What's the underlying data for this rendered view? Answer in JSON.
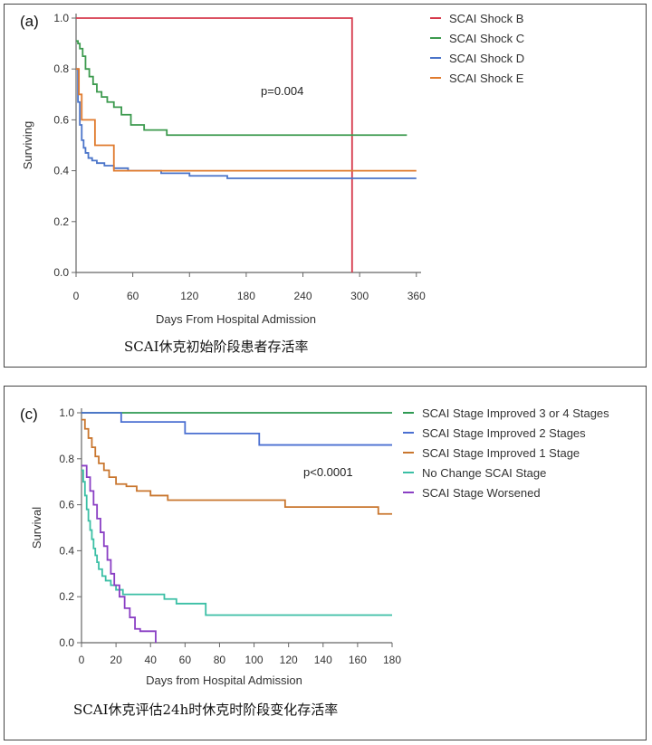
{
  "chart_data": [
    {
      "type": "line",
      "panel_label": "(a)",
      "xlabel": "Days From Hospital Admission",
      "ylabel": "Surviving",
      "xlim": [
        0,
        365
      ],
      "ylim": [
        0,
        1.0
      ],
      "xticks": [
        0,
        60,
        120,
        180,
        240,
        300,
        360
      ],
      "yticks": [
        0.0,
        0.2,
        0.4,
        0.6,
        0.8,
        1.0
      ],
      "ytick_labels": [
        "0.0",
        "0.2",
        "0.4",
        "0.6",
        "0.8",
        "1.0"
      ],
      "annotation": "p=0.004",
      "caption": "SCAI休克初始阶段患者存活率",
      "legend_placement": "right",
      "series": [
        {
          "name": "SCAI Shock B",
          "color": "#d6394b",
          "x": [
            0,
            292,
            292
          ],
          "y": [
            1.0,
            1.0,
            0.0
          ]
        },
        {
          "name": "SCAI Shock C",
          "color": "#3c9a4e",
          "x": [
            0,
            2,
            4,
            7,
            10,
            14,
            18,
            22,
            27,
            33,
            40,
            48,
            58,
            72,
            96,
            140,
            200,
            290,
            350
          ],
          "y": [
            0.91,
            0.9,
            0.88,
            0.85,
            0.8,
            0.77,
            0.74,
            0.71,
            0.69,
            0.67,
            0.65,
            0.62,
            0.58,
            0.56,
            0.54,
            0.54,
            0.54,
            0.54,
            0.54
          ]
        },
        {
          "name": "SCAI Shock D",
          "color": "#4a74c9",
          "x": [
            0,
            2,
            4,
            6,
            8,
            10,
            13,
            17,
            22,
            30,
            40,
            55,
            70,
            90,
            120,
            160,
            200,
            290,
            360
          ],
          "y": [
            0.8,
            0.67,
            0.58,
            0.52,
            0.49,
            0.47,
            0.45,
            0.44,
            0.43,
            0.42,
            0.41,
            0.4,
            0.4,
            0.39,
            0.38,
            0.37,
            0.37,
            0.37,
            0.37
          ]
        },
        {
          "name": "SCAI Shock E",
          "color": "#e07b2e",
          "x": [
            0,
            3,
            6,
            10,
            20,
            30,
            40,
            58,
            80,
            150,
            250,
            360
          ],
          "y": [
            0.8,
            0.7,
            0.6,
            0.6,
            0.5,
            0.5,
            0.4,
            0.4,
            0.4,
            0.4,
            0.4,
            0.4
          ]
        }
      ]
    },
    {
      "type": "line",
      "panel_label": "(c)",
      "xlabel": "Days from Hospital Admission",
      "ylabel": "Survival",
      "xlim": [
        0,
        180
      ],
      "ylim": [
        0,
        1.0
      ],
      "xticks": [
        0,
        20,
        40,
        60,
        80,
        100,
        120,
        140,
        160,
        180
      ],
      "yticks": [
        0.0,
        0.2,
        0.4,
        0.6,
        0.8,
        1.0
      ],
      "ytick_labels": [
        "0.0",
        "0.2",
        "0.4",
        "0.6",
        "0.8",
        "1.0"
      ],
      "annotation": "p<0.0001",
      "caption": "SCAI休克评估24h时休克时阶段变化存活率",
      "legend_placement": "right",
      "series": [
        {
          "name": "SCAI Stage Improved 3 or 4 Stages",
          "color": "#2e9a52",
          "x": [
            0,
            180
          ],
          "y": [
            1.0,
            1.0
          ]
        },
        {
          "name": "SCAI Stage Improved 2 Stages",
          "color": "#4a6fd1",
          "x": [
            0,
            23,
            23,
            60,
            60,
            103,
            103,
            180
          ],
          "y": [
            1.0,
            1.0,
            0.96,
            0.96,
            0.91,
            0.91,
            0.86,
            0.86
          ]
        },
        {
          "name": "SCAI Stage Improved 1 Stage",
          "color": "#c9762e",
          "x": [
            0,
            2,
            4,
            6,
            8,
            10,
            13,
            16,
            20,
            26,
            32,
            40,
            50,
            60,
            90,
            118,
            160,
            172,
            180
          ],
          "y": [
            0.97,
            0.93,
            0.89,
            0.85,
            0.81,
            0.78,
            0.75,
            0.72,
            0.69,
            0.68,
            0.66,
            0.64,
            0.62,
            0.62,
            0.62,
            0.59,
            0.59,
            0.56,
            0.56
          ]
        },
        {
          "name": "No Change SCAI Stage",
          "color": "#3bbfa5",
          "x": [
            0,
            1,
            2,
            3,
            4,
            5,
            6,
            7,
            8,
            9,
            10,
            12,
            14,
            17,
            20,
            24,
            40,
            48,
            55,
            70,
            72,
            120,
            180
          ],
          "y": [
            0.75,
            0.7,
            0.64,
            0.58,
            0.53,
            0.49,
            0.45,
            0.41,
            0.38,
            0.35,
            0.32,
            0.29,
            0.27,
            0.25,
            0.23,
            0.21,
            0.21,
            0.19,
            0.17,
            0.17,
            0.12,
            0.12,
            0.12
          ]
        },
        {
          "name": "SCAI Stage Worsened",
          "color": "#8a3fc4",
          "x": [
            0,
            3,
            5,
            7,
            9,
            11,
            13,
            15,
            17,
            19,
            22,
            25,
            28,
            31,
            34,
            38,
            42,
            43
          ],
          "y": [
            0.77,
            0.72,
            0.66,
            0.6,
            0.54,
            0.48,
            0.42,
            0.36,
            0.3,
            0.25,
            0.2,
            0.15,
            0.11,
            0.06,
            0.05,
            0.05,
            0.05,
            0.0
          ]
        }
      ]
    }
  ]
}
